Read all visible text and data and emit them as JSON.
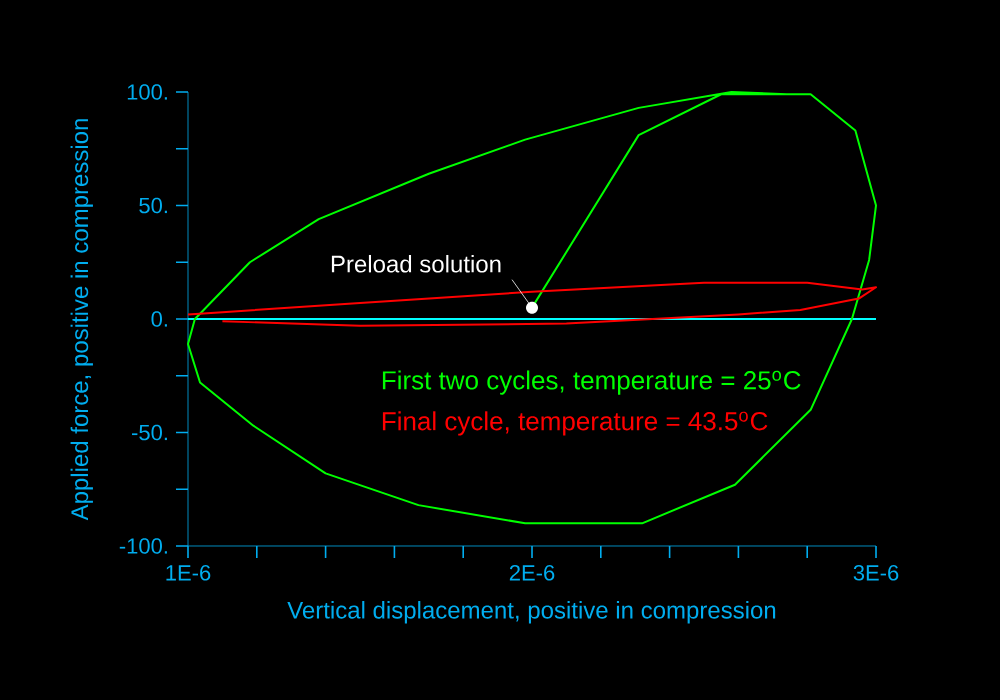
{
  "chart_data": {
    "type": "line",
    "xlabel": "Vertical displacement, positive in compression",
    "ylabel": "Applied force, positive in compression",
    "xlim": [
      1e-06,
      3e-06
    ],
    "ylim": [
      -100,
      100
    ],
    "xticks": [
      {
        "value": 1e-06,
        "label": "1E-6"
      },
      {
        "value": 1.2e-06,
        "label": null
      },
      {
        "value": 1.4e-06,
        "label": null
      },
      {
        "value": 1.6e-06,
        "label": null
      },
      {
        "value": 1.8e-06,
        "label": null
      },
      {
        "value": 2e-06,
        "label": "2E-6"
      },
      {
        "value": 2.2e-06,
        "label": null
      },
      {
        "value": 2.4e-06,
        "label": null
      },
      {
        "value": 2.6e-06,
        "label": null
      },
      {
        "value": 2.8e-06,
        "label": null
      },
      {
        "value": 3e-06,
        "label": "3E-6"
      }
    ],
    "yticks": [
      {
        "value": -100,
        "label": "-100."
      },
      {
        "value": -75,
        "label": null
      },
      {
        "value": -50,
        "label": "-50."
      },
      {
        "value": -25,
        "label": null
      },
      {
        "value": 0,
        "label": "0."
      },
      {
        "value": 25,
        "label": null
      },
      {
        "value": 50,
        "label": "50."
      },
      {
        "value": 75,
        "label": null
      },
      {
        "value": 100,
        "label": "100."
      }
    ],
    "series": [
      {
        "name": "First two cycles, temperature = 25$^{o}$C",
        "color": "#00ff00",
        "x": [
          2e-06,
          2.31e-06,
          2.55e-06,
          2.81e-06,
          2.94e-06,
          3e-06,
          2.98e-06,
          2.93e-06,
          2.81e-06,
          2.59e-06,
          2.32e-06,
          2.08e-06,
          1.98e-06,
          1.67e-06,
          1.4e-06,
          1.19e-06,
          1.035e-06,
          1e-06,
          1.02e-06,
          1.18e-06,
          1.38e-06,
          1.7e-06,
          1.98e-06,
          2.31e-06,
          2.58e-06,
          2.74e-06,
          2.81e-06
        ],
        "values": [
          5,
          81,
          99,
          99,
          83,
          50,
          26,
          0,
          -40,
          -73,
          -90,
          -90,
          -90,
          -82,
          -68,
          -47,
          -28,
          -11,
          0,
          25,
          44,
          64,
          79,
          93,
          100,
          99,
          99
        ]
      },
      {
        "name": "Final cycle, temperature = 43.5$^{o}$C",
        "color": "#ff0000",
        "x": [
          1e-06,
          1.1e-06,
          1.5e-06,
          2e-06,
          2.5e-06,
          2.8e-06,
          2.96e-06,
          3e-06,
          2.95e-06,
          2.78e-06,
          2.6e-06,
          2.1e-06,
          1.5e-06,
          1.1e-06
        ],
        "values": [
          2,
          3,
          7,
          12,
          16,
          16,
          13,
          14,
          9,
          4,
          2,
          -2,
          -3,
          -1
        ]
      }
    ],
    "ref_lines": [
      {
        "axis": "y",
        "value": 0,
        "color": "#00ffff"
      }
    ],
    "annotations": [
      {
        "text": "Preload solution",
        "x": 2e-06,
        "y": 5
      }
    ]
  }
}
